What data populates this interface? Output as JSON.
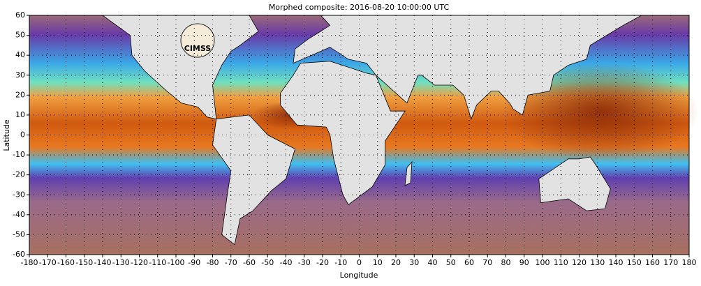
{
  "map": {
    "title": "Morphed composite: 2016-08-20 10:00:00 UTC",
    "xlabel": "Longitude",
    "ylabel": "Latitude",
    "logo": "CIMSS",
    "xlim": [
      -180,
      180
    ],
    "ylim": [
      -60,
      60
    ],
    "xticks": [
      -180,
      -170,
      -160,
      -150,
      -140,
      -130,
      -120,
      -110,
      -100,
      -90,
      -80,
      -70,
      -60,
      -50,
      -40,
      -30,
      -20,
      -10,
      0,
      10,
      20,
      30,
      40,
      50,
      60,
      70,
      80,
      90,
      100,
      110,
      120,
      130,
      140,
      150,
      160,
      170,
      180
    ],
    "yticks": [
      -60,
      -50,
      -40,
      -30,
      -20,
      -10,
      0,
      10,
      20,
      30,
      40,
      50,
      60
    ],
    "grid": true
  }
}
